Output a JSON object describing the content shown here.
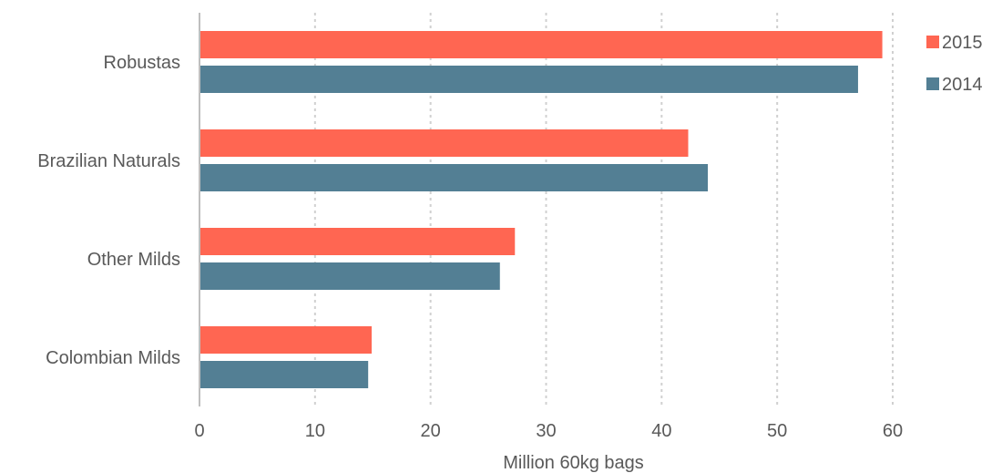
{
  "chart_data": {
    "type": "bar",
    "orientation": "horizontal",
    "categories": [
      "Robustas",
      "Brazilian Naturals",
      "Other Milds",
      "Colombian Milds"
    ],
    "series": [
      {
        "name": "2015",
        "color": "#FF6652",
        "values": [
          59.1,
          42.3,
          27.3,
          14.9
        ]
      },
      {
        "name": "2014",
        "color": "#537F94",
        "values": [
          57.0,
          44.0,
          26.0,
          14.6
        ]
      }
    ],
    "xlabel": "Million 60kg bags",
    "ylabel": "",
    "xlim": [
      0,
      60
    ],
    "xticks": [
      0,
      10,
      20,
      30,
      40,
      50,
      60
    ],
    "grid": "vertical-dotted",
    "legend_position": "right"
  }
}
